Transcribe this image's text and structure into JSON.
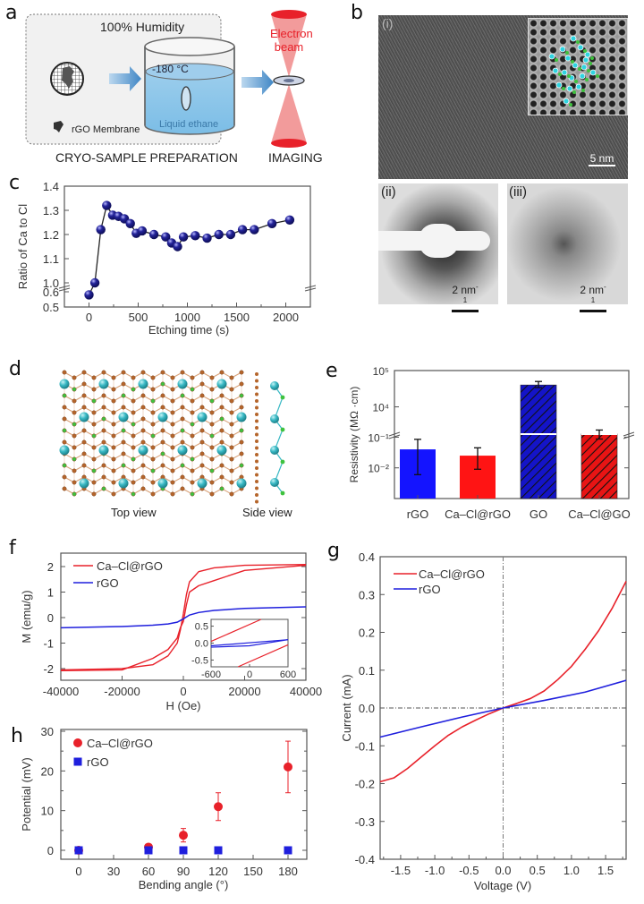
{
  "figure": {
    "panel_labels": [
      "a",
      "b",
      "c",
      "d",
      "e",
      "f",
      "g",
      "h"
    ]
  },
  "panel_a": {
    "humidity": "100% Humidity",
    "temperature": "-180 °C",
    "liquid": "Liquid ethane",
    "membrane_legend": "rGO Membrane",
    "beam_label": [
      "Electron",
      "beam"
    ],
    "caption_prep": "CRYO-SAMPLE PREPARATION",
    "caption_imaging": "IMAGING",
    "colors": {
      "beam": "#e8212a",
      "liquid": "#8fc7ea",
      "arrow": "#4a90c8"
    }
  },
  "panel_b": {
    "sub_labels": [
      "(i)",
      "(ii)",
      "(iii)"
    ],
    "scalebar_i": "5 nm",
    "scalebar_ii": "2 nm",
    "scalebar_iii": "2 nm",
    "scalebar_unit_exp": "-1"
  },
  "panel_d": {
    "top_view": "Top view",
    "side_view": "Side view",
    "colors": {
      "carbon": "#b5652b",
      "calcium": "#38b8c4",
      "chlorine": "#3ec23e"
    }
  },
  "chart_data": [
    {
      "id": "c",
      "type": "line",
      "title": "",
      "xlabel": "Etching time (s)",
      "ylabel": "Ratio of Ca to Cl",
      "xlim": [
        -250,
        2250
      ],
      "ylim_display": [
        0.5,
        1.4
      ],
      "y_ticks": [
        "0.5",
        "0.6",
        "1.0",
        "1.1",
        "1.2",
        "1.3",
        "1.4"
      ],
      "x_ticks": [
        "0",
        "500",
        "1000",
        "1500",
        "2000"
      ],
      "axis_break": "between 0.6 and 1.0",
      "marker_color": "#1c1c8c",
      "x": [
        0,
        60,
        120,
        180,
        240,
        300,
        360,
        420,
        480,
        540,
        660,
        780,
        840,
        900,
        960,
        1080,
        1200,
        1320,
        1440,
        1560,
        1680,
        1860,
        2040
      ],
      "y": [
        0.58,
        1.0,
        1.22,
        1.32,
        1.28,
        1.275,
        1.265,
        1.245,
        1.205,
        1.215,
        1.2,
        1.19,
        1.165,
        1.15,
        1.19,
        1.195,
        1.185,
        1.2,
        1.2,
        1.22,
        1.22,
        1.245,
        1.26
      ]
    },
    {
      "id": "e",
      "type": "bar",
      "ylabel": "Resistivity (MΩ ·cm)",
      "yscale": "log (broken axis)",
      "y_ticks_lower": [
        "10⁻²",
        "10⁻¹"
      ],
      "y_ticks_upper": [
        "10⁴",
        "10⁵"
      ],
      "categories": [
        "rGO",
        "Ca–Cl@rGO",
        "GO",
        "Ca–Cl@GO"
      ],
      "values": [
        0.04,
        0.025,
        40000,
        1800
      ],
      "error_low": [
        0.006,
        0.009,
        34000,
        1300
      ],
      "error_high": [
        0.085,
        0.045,
        50000,
        2300
      ],
      "colors": [
        "#1414ff",
        "#ff1414",
        "#1414c8",
        "#e81414"
      ],
      "hatched": [
        false,
        false,
        true,
        true
      ]
    },
    {
      "id": "f",
      "type": "line",
      "xlabel": "H (Oe)",
      "ylabel": "M (emu/g)",
      "xlim": [
        -40000,
        40000
      ],
      "ylim": [
        -2.4,
        2.4
      ],
      "x_ticks": [
        "-40000",
        "-20000",
        "0",
        "20000",
        "40000"
      ],
      "y_ticks": [
        "-2",
        "-1",
        "0",
        "1",
        "2"
      ],
      "legend": "top-left",
      "series": [
        {
          "name": "Ca–Cl@rGO",
          "color": "#e8212a",
          "x": [
            -40000,
            -20000,
            -10000,
            -5000,
            -2000,
            -1000,
            0,
            1000,
            2000,
            5000,
            10000,
            20000,
            40000
          ],
          "y_up": [
            -2.05,
            -2.0,
            -1.85,
            -1.5,
            -1.0,
            -0.5,
            0.15,
            0.9,
            1.4,
            1.8,
            1.95,
            2.05,
            2.08
          ],
          "y_down": [
            -2.08,
            -2.05,
            -1.6,
            -1.25,
            -0.8,
            -0.4,
            -0.15,
            0.5,
            1.0,
            1.25,
            1.45,
            1.85,
            2.05
          ]
        },
        {
          "name": "rGO",
          "color": "#1f1fdd",
          "x": [
            -40000,
            -20000,
            -10000,
            -5000,
            -2000,
            0,
            2000,
            5000,
            10000,
            20000,
            40000
          ],
          "y": [
            -0.4,
            -0.35,
            -0.3,
            -0.25,
            -0.18,
            -0.05,
            0.1,
            0.2,
            0.28,
            0.36,
            0.42
          ]
        }
      ],
      "inset": {
        "xlim": [
          -600,
          600
        ],
        "ylim": [
          -0.7,
          0.7
        ],
        "x_ticks": [
          "-600",
          "0",
          "600"
        ],
        "y_ticks": [
          "-0.5",
          "0.0",
          "0.5"
        ]
      }
    },
    {
      "id": "g",
      "type": "line",
      "xlabel": "Voltage (V)",
      "ylabel": "Current (mA)",
      "xlim": [
        -1.8,
        1.8
      ],
      "ylim": [
        -0.4,
        0.4
      ],
      "x_ticks": [
        "-1.5",
        "-1.0",
        "-0.5",
        "0.0",
        "0.5",
        "1.0",
        "1.5"
      ],
      "y_ticks": [
        "-0.4",
        "-0.3",
        "-0.2",
        "-0.1",
        "0.0",
        "0.1",
        "0.2",
        "0.3",
        "0.4"
      ],
      "legend": "top-left",
      "series": [
        {
          "name": "Ca–Cl@rGO",
          "color": "#e8212a",
          "x": [
            -1.8,
            -1.6,
            -1.4,
            -1.2,
            -1.0,
            -0.8,
            -0.6,
            -0.4,
            -0.2,
            0.0,
            0.2,
            0.4,
            0.6,
            0.8,
            1.0,
            1.2,
            1.4,
            1.6,
            1.8
          ],
          "y": [
            -0.195,
            -0.185,
            -0.16,
            -0.13,
            -0.1,
            -0.072,
            -0.05,
            -0.032,
            -0.015,
            0.0,
            0.012,
            0.025,
            0.045,
            0.075,
            0.11,
            0.155,
            0.205,
            0.265,
            0.335
          ]
        },
        {
          "name": "rGO",
          "color": "#1f1fdd",
          "x": [
            -1.8,
            -1.2,
            -0.6,
            0.0,
            0.6,
            1.2,
            1.8
          ],
          "y": [
            -0.077,
            -0.05,
            -0.024,
            0.0,
            0.02,
            0.042,
            0.073
          ]
        }
      ]
    },
    {
      "id": "h",
      "type": "scatter",
      "xlabel": "Bending angle (°)",
      "ylabel": "Potential (mV)",
      "xlim": [
        -15,
        195
      ],
      "ylim": [
        -2,
        30
      ],
      "x_ticks": [
        "0",
        "30",
        "60",
        "90",
        "120",
        "150",
        "180"
      ],
      "y_ticks": [
        "0",
        "10",
        "20",
        "30"
      ],
      "legend": "top-left",
      "series": [
        {
          "name": "Ca–Cl@rGO",
          "color": "#e8212a",
          "marker": "circle",
          "x": [
            0,
            60,
            90,
            120,
            180
          ],
          "y": [
            0,
            0.8,
            3.8,
            11,
            21
          ],
          "err": [
            0,
            0,
            1.7,
            3.5,
            6.5
          ]
        },
        {
          "name": "rGO",
          "color": "#1f1fdd",
          "marker": "square",
          "x": [
            0,
            60,
            90,
            120,
            180
          ],
          "y": [
            0,
            0,
            0,
            0,
            0
          ]
        }
      ]
    }
  ]
}
